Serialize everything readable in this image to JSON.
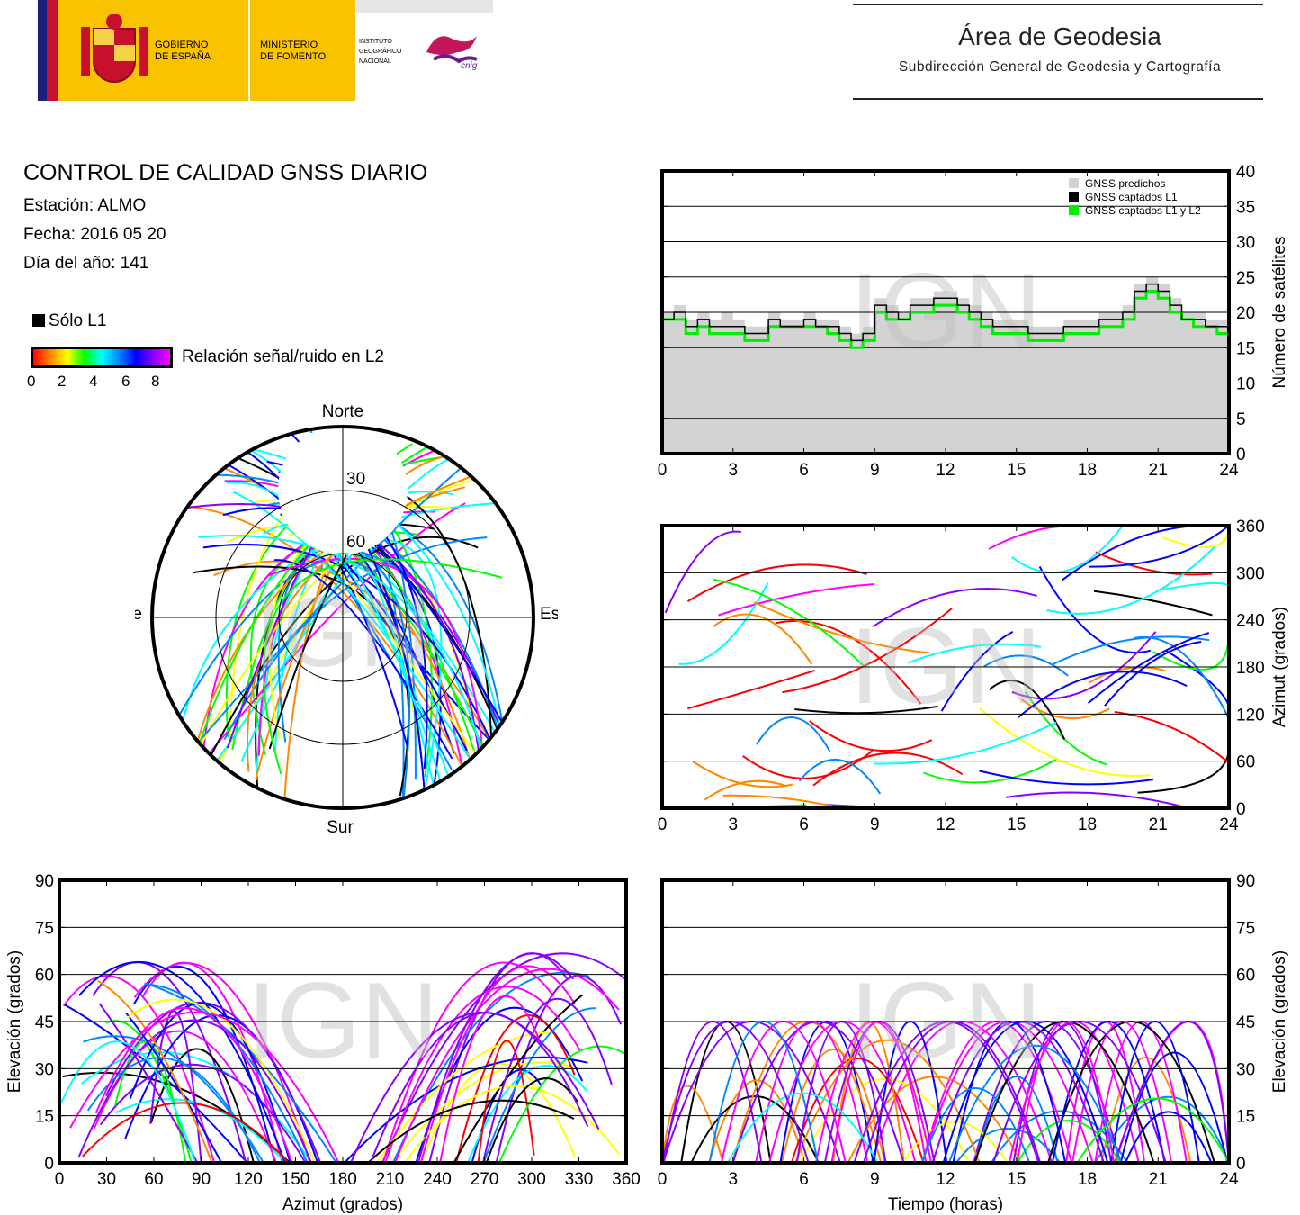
{
  "header": {
    "gobierno": [
      "GOBIERNO",
      "DE ESPAÑA"
    ],
    "ministerio": [
      "MINISTERIO",
      "DE FOMENTO"
    ],
    "instituto": [
      "INSTITUTO",
      "GEOGRÁFICO",
      "NACIONAL"
    ],
    "cnig": "cnig",
    "area_title": "Área de Geodesia",
    "area_subtitle": "Subdirección General de Geodesia y Cartografía"
  },
  "info": {
    "title": "CONTROL DE CALIDAD GNSS DIARIO",
    "station": "Estación: ALMO",
    "date": "Fecha: 2016 05 20",
    "doy": "Día del año: 141"
  },
  "legend": {
    "l1_only": "Sólo L1",
    "snr_label": "Relación señal/ruido en L2",
    "snr_ticks": [
      "0",
      "2",
      "4",
      "6",
      "8"
    ],
    "snr_colors": [
      "#ff0000",
      "#ff8800",
      "#ffff00",
      "#00ff00",
      "#00ffff",
      "#0088ff",
      "#0000ff",
      "#8800ff",
      "#ff00ff"
    ]
  },
  "watermark": "IGN",
  "chart_data": [
    {
      "type": "polar",
      "id": "skyplot",
      "directions": {
        "north": "Norte",
        "south": "Sur",
        "west": "Oeste",
        "east": "Este"
      },
      "elevation_rings": [
        "30",
        "60"
      ]
    },
    {
      "type": "area",
      "id": "satellites",
      "xlim": [
        0,
        24
      ],
      "ylim": [
        0,
        40
      ],
      "xticks": [
        "0",
        "3",
        "6",
        "9",
        "12",
        "15",
        "18",
        "21",
        "24"
      ],
      "yticks": [
        "0",
        "5",
        "10",
        "15",
        "20",
        "25",
        "30",
        "35",
        "40"
      ],
      "ylabel": "Número de satélites",
      "legend": [
        {
          "name": "GNSS predichos",
          "color": "#d3d3d3"
        },
        {
          "name": "GNSS captados L1",
          "color": "#000000"
        },
        {
          "name": "GNSS captados L1 y L2",
          "color": "#00ee00"
        }
      ],
      "x": [
        0,
        0.5,
        1,
        1.5,
        2,
        2.5,
        3,
        3.5,
        4,
        4.5,
        5,
        5.5,
        6,
        6.5,
        7,
        7.5,
        8,
        8.5,
        9,
        9.5,
        10,
        10.5,
        11,
        11.5,
        12,
        12.5,
        13,
        13.5,
        14,
        14.5,
        15,
        15.5,
        16,
        16.5,
        17,
        17.5,
        18,
        18.5,
        19,
        19.5,
        20,
        20.5,
        21,
        21.5,
        22,
        22.5,
        23,
        23.5,
        24
      ],
      "series": [
        {
          "name": "GNSS predichos",
          "values": [
            20,
            21,
            19,
            20,
            19,
            20,
            19,
            18,
            18,
            20,
            19,
            19,
            20,
            19,
            19,
            18,
            17,
            18,
            22,
            21,
            20,
            22,
            22,
            23,
            23,
            22,
            21,
            20,
            19,
            19,
            19,
            18,
            18,
            18,
            19,
            19,
            19,
            20,
            20,
            21,
            24,
            25,
            24,
            22,
            20,
            20,
            19,
            19,
            21
          ]
        },
        {
          "name": "GNSS captados L1",
          "values": [
            19,
            20,
            18,
            19,
            18,
            18,
            18,
            17,
            17,
            19,
            18,
            18,
            19,
            18,
            18,
            17,
            16,
            17,
            21,
            20,
            19,
            21,
            21,
            22,
            22,
            21,
            20,
            19,
            18,
            18,
            18,
            17,
            17,
            17,
            18,
            18,
            18,
            19,
            19,
            20,
            23,
            24,
            23,
            21,
            19,
            19,
            18,
            18,
            20
          ]
        },
        {
          "name": "GNSS captados L1 y L2",
          "values": [
            19,
            19,
            17,
            18,
            17,
            17,
            17,
            16,
            16,
            18,
            18,
            18,
            18,
            18,
            17,
            16,
            15,
            16,
            20,
            19,
            19,
            20,
            20,
            21,
            21,
            20,
            19,
            18,
            17,
            17,
            17,
            16,
            16,
            16,
            17,
            17,
            17,
            18,
            18,
            19,
            22,
            23,
            22,
            20,
            19,
            18,
            18,
            17,
            19
          ]
        }
      ]
    },
    {
      "type": "scatter",
      "id": "azimuth-time",
      "xlim": [
        0,
        24
      ],
      "ylim": [
        0,
        360
      ],
      "xticks": [
        "0",
        "3",
        "6",
        "9",
        "12",
        "15",
        "18",
        "21",
        "24"
      ],
      "yticks": [
        "0",
        "60",
        "120",
        "180",
        "240",
        "300",
        "360"
      ],
      "ylabel": "Azimut (grados)"
    },
    {
      "type": "scatter",
      "id": "elevation-azimuth",
      "xlim": [
        0,
        360
      ],
      "ylim": [
        0,
        90
      ],
      "xticks": [
        "0",
        "30",
        "60",
        "90",
        "120",
        "150",
        "180",
        "210",
        "240",
        "270",
        "300",
        "330",
        "360"
      ],
      "yticks": [
        "0",
        "15",
        "30",
        "45",
        "60",
        "75",
        "90"
      ],
      "xlabel": "Azimut (grados)",
      "ylabel": "Elevación (grados)"
    },
    {
      "type": "scatter",
      "id": "elevation-time",
      "xlim": [
        0,
        24
      ],
      "ylim": [
        0,
        90
      ],
      "xticks": [
        "0",
        "3",
        "6",
        "9",
        "12",
        "15",
        "18",
        "21",
        "24"
      ],
      "yticks": [
        "0",
        "15",
        "30",
        "45",
        "60",
        "75",
        "90"
      ],
      "xlabel": "Tiempo (horas)",
      "ylabel": "Elevación (grados)"
    }
  ]
}
